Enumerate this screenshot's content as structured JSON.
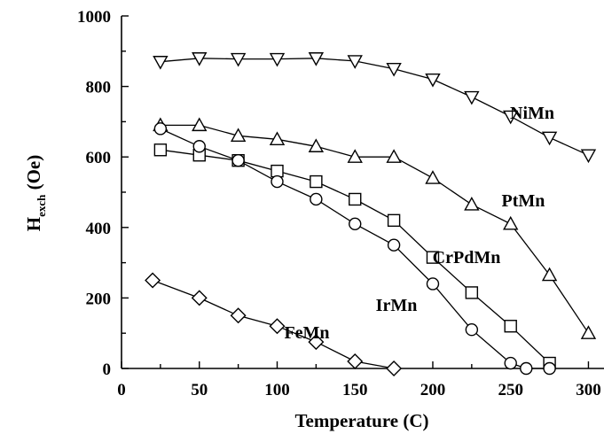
{
  "chart_data": {
    "type": "line",
    "title": "",
    "xlabel": "Temperature (C)",
    "ylabel_main": "H",
    "ylabel_sub": "exch",
    "ylabel_unit": " (Oe)",
    "xlim": [
      0,
      310
    ],
    "ylim": [
      0,
      1000
    ],
    "x_ticks": [
      0,
      50,
      100,
      150,
      200,
      250,
      300
    ],
    "y_ticks": [
      0,
      200,
      400,
      600,
      800,
      1000
    ],
    "x_tick_labels": [
      "0",
      "50",
      "100",
      "150",
      "200",
      "250",
      "300"
    ],
    "y_tick_labels": [
      "0",
      "200",
      "400",
      "600",
      "800",
      "1000"
    ],
    "grid": false,
    "legend": "none (inline labels)",
    "series": [
      {
        "name": "NiMn",
        "marker": "triangle-down",
        "x": [
          25,
          50,
          75,
          100,
          125,
          150,
          175,
          200,
          225,
          250,
          275,
          300
        ],
        "y": [
          870,
          880,
          878,
          878,
          880,
          872,
          850,
          820,
          770,
          715,
          655,
          605
        ]
      },
      {
        "name": "PtMn",
        "marker": "triangle-up",
        "x": [
          25,
          50,
          75,
          100,
          125,
          150,
          175,
          200,
          225,
          250,
          275,
          300
        ],
        "y": [
          690,
          690,
          660,
          650,
          630,
          600,
          600,
          540,
          465,
          410,
          265,
          100
        ]
      },
      {
        "name": "CrPdMn",
        "marker": "square",
        "x": [
          25,
          50,
          75,
          100,
          125,
          150,
          175,
          200,
          225,
          250,
          275
        ],
        "y": [
          620,
          605,
          590,
          560,
          530,
          480,
          420,
          315,
          215,
          120,
          15
        ]
      },
      {
        "name": "IrMn",
        "marker": "circle",
        "x": [
          25,
          50,
          75,
          100,
          125,
          150,
          175,
          200,
          225,
          250,
          260,
          275
        ],
        "y": [
          680,
          630,
          590,
          530,
          480,
          410,
          350,
          240,
          110,
          15,
          0,
          0
        ]
      },
      {
        "name": "FeMn",
        "marker": "diamond",
        "x": [
          20,
          50,
          75,
          100,
          125,
          150,
          175
        ],
        "y": [
          250,
          200,
          150,
          120,
          75,
          20,
          0
        ]
      }
    ],
    "labels": [
      {
        "text": "NiMn"
      },
      {
        "text": "PtMn"
      },
      {
        "text": "CrPdMn"
      },
      {
        "text": "IrMn"
      },
      {
        "text": "FeMn"
      }
    ]
  }
}
